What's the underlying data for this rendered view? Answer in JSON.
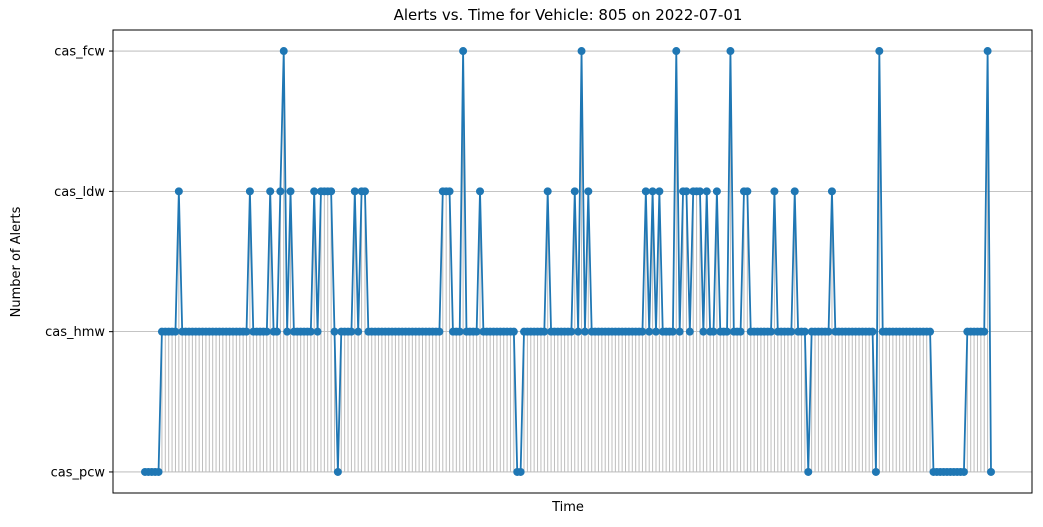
{
  "chart_data": {
    "type": "line",
    "title": "Alerts vs. Time for Vehicle: 805 on 2022-07-01",
    "xlabel": "Time",
    "ylabel": "Number of Alerts",
    "color": "#1f77b4",
    "grid": true,
    "ylim": [
      -0.15,
      3.15
    ],
    "yticks": [
      {
        "value": 0,
        "label": "cas_pcw"
      },
      {
        "value": 1,
        "label": "cas_hmw"
      },
      {
        "value": 2,
        "label": "cas_ldw"
      },
      {
        "value": 3,
        "label": "cas_fcw"
      }
    ],
    "values": [
      0,
      0,
      0,
      0,
      0,
      1,
      1,
      1,
      1,
      1,
      2,
      1,
      1,
      1,
      1,
      1,
      1,
      1,
      1,
      1,
      1,
      1,
      1,
      1,
      1,
      1,
      1,
      1,
      1,
      1,
      1,
      2,
      1,
      1,
      1,
      1,
      1,
      2,
      1,
      1,
      2,
      3,
      1,
      2,
      1,
      1,
      1,
      1,
      1,
      1,
      2,
      1,
      2,
      2,
      2,
      2,
      1,
      0,
      1,
      1,
      1,
      1,
      2,
      1,
      2,
      2,
      1,
      1,
      1,
      1,
      1,
      1,
      1,
      1,
      1,
      1,
      1,
      1,
      1,
      1,
      1,
      1,
      1,
      1,
      1,
      1,
      1,
      1,
      2,
      2,
      2,
      1,
      1,
      1,
      3,
      1,
      1,
      1,
      1,
      2,
      1,
      1,
      1,
      1,
      1,
      1,
      1,
      1,
      1,
      1,
      0,
      0,
      1,
      1,
      1,
      1,
      1,
      1,
      1,
      2,
      1,
      1,
      1,
      1,
      1,
      1,
      1,
      2,
      1,
      3,
      1,
      2,
      1,
      1,
      1,
      1,
      1,
      1,
      1,
      1,
      1,
      1,
      1,
      1,
      1,
      1,
      1,
      1,
      2,
      1,
      2,
      1,
      2,
      1,
      1,
      1,
      1,
      3,
      1,
      2,
      2,
      1,
      2,
      2,
      2,
      1,
      2,
      1,
      1,
      2,
      1,
      1,
      1,
      3,
      1,
      1,
      1,
      2,
      2,
      1,
      1,
      1,
      1,
      1,
      1,
      1,
      2,
      1,
      1,
      1,
      1,
      1,
      2,
      1,
      1,
      1,
      0,
      1,
      1,
      1,
      1,
      1,
      1,
      2,
      1,
      1,
      1,
      1,
      1,
      1,
      1,
      1,
      1,
      1,
      1,
      1,
      0,
      3,
      1,
      1,
      1,
      1,
      1,
      1,
      1,
      1,
      1,
      1,
      1,
      1,
      1,
      1,
      1,
      0,
      0,
      0,
      0,
      0,
      0,
      0,
      0,
      0,
      0,
      1,
      1,
      1,
      1,
      1,
      1,
      3,
      0
    ]
  }
}
